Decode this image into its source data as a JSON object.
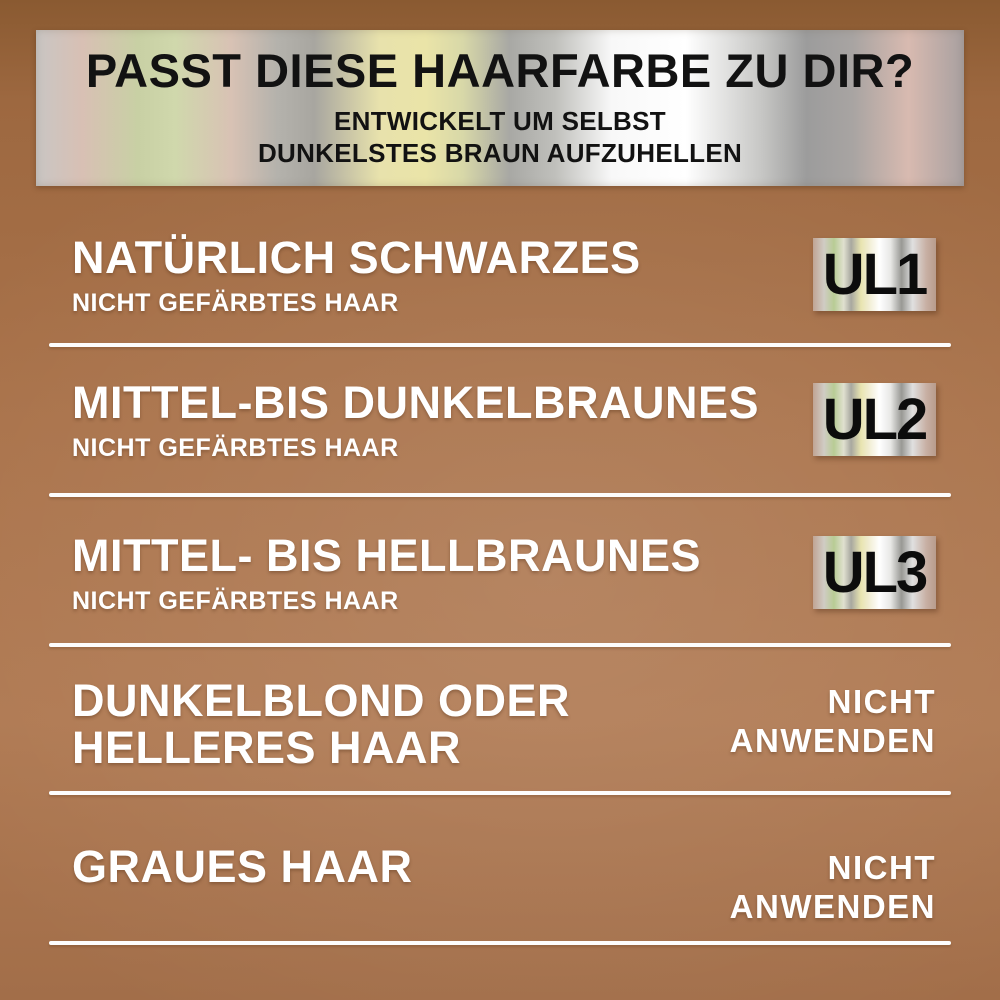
{
  "header": {
    "title": "PASST DIESE HAARFARBE ZU DIR?",
    "subtitle_line1": "ENTWICKELT UM SELBST",
    "subtitle_line2": "DUNKELSTES BRAUN AUFZUHELLEN"
  },
  "rows": [
    {
      "title": "NATÜRLICH SCHWARZES",
      "subtitle": "NICHT GEFÄRBTES HAAR",
      "badge": "UL1"
    },
    {
      "title": "MITTEL-BIS DUNKELBRAUNES",
      "subtitle": "NICHT GEFÄRBTES HAAR",
      "badge": "UL2"
    },
    {
      "title": "MITTEL- BIS HELLBRAUNES",
      "subtitle": "NICHT GEFÄRBTES HAAR",
      "badge": "UL3"
    },
    {
      "title_line1": "DUNKELBLOND ODER",
      "title_line2": "HELLERES HAAR",
      "note_line1": "NICHT",
      "note_line2": "ANWENDEN"
    },
    {
      "title": "GRAUES HAAR",
      "note_line1": "NICHT",
      "note_line2": "ANWENDEN"
    }
  ],
  "colors": {
    "background_copper": "#aa734b",
    "background_copper_dark": "#8a5a31",
    "metallic_silver": "#d6d3cc",
    "metallic_green_tint": "#c8d0a4",
    "metallic_yellow_tint": "#e8e2ac",
    "metallic_pink_tint": "#d8bab0",
    "text_white": "#ffffff",
    "text_black": "#121212",
    "separator_white": "#fdfdfd"
  }
}
